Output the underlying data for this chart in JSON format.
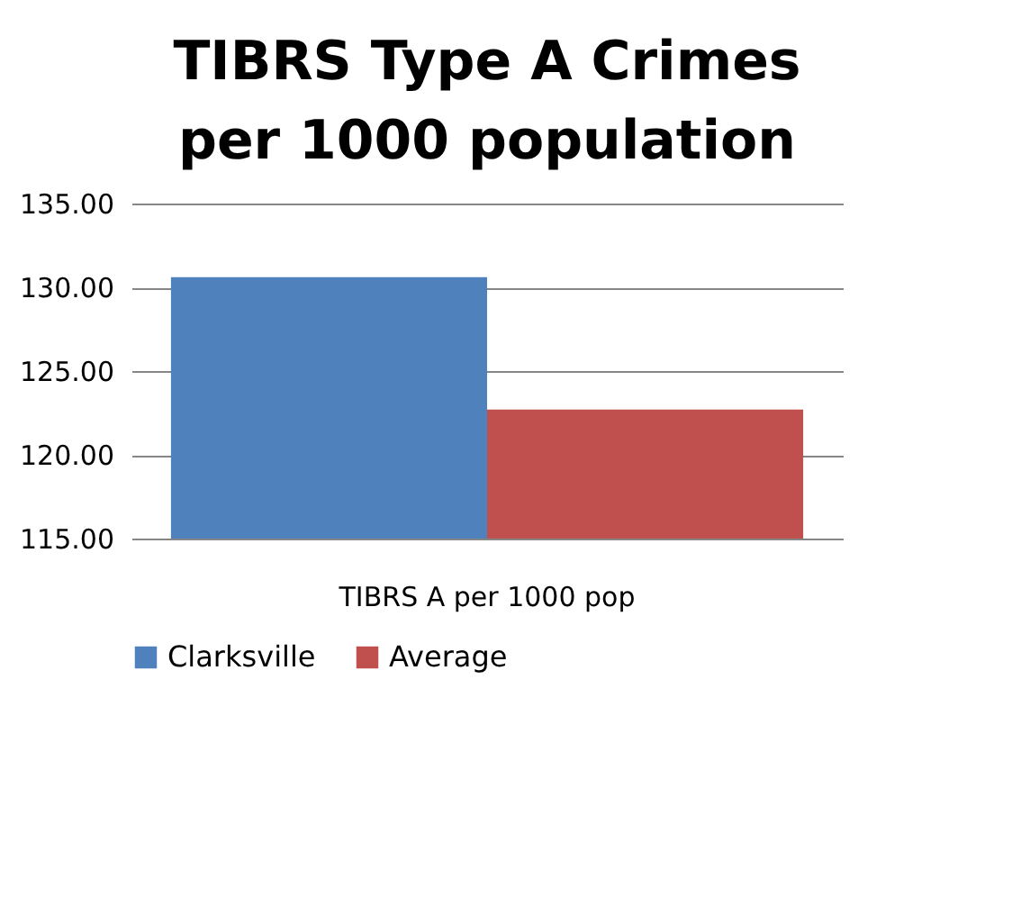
{
  "chart_data": {
    "type": "bar",
    "title": "TIBRS Type A Crimes per 1000 population",
    "categories": [
      "TIBRS A per 1000 pop"
    ],
    "series": [
      {
        "name": "Clarksville",
        "color": "#4f81bd",
        "values": [
          130.6
        ]
      },
      {
        "name": "Average",
        "color": "#c0504d",
        "values": [
          122.7
        ]
      }
    ],
    "ylim": [
      115,
      135
    ],
    "yticks": [
      {
        "value": 115,
        "label": "115.00"
      },
      {
        "value": 120,
        "label": "120.00"
      },
      {
        "value": 125,
        "label": "125.00"
      },
      {
        "value": 130,
        "label": "130.00"
      },
      {
        "value": 135,
        "label": "135.00"
      }
    ],
    "grid": "y",
    "legend": "bottom"
  }
}
